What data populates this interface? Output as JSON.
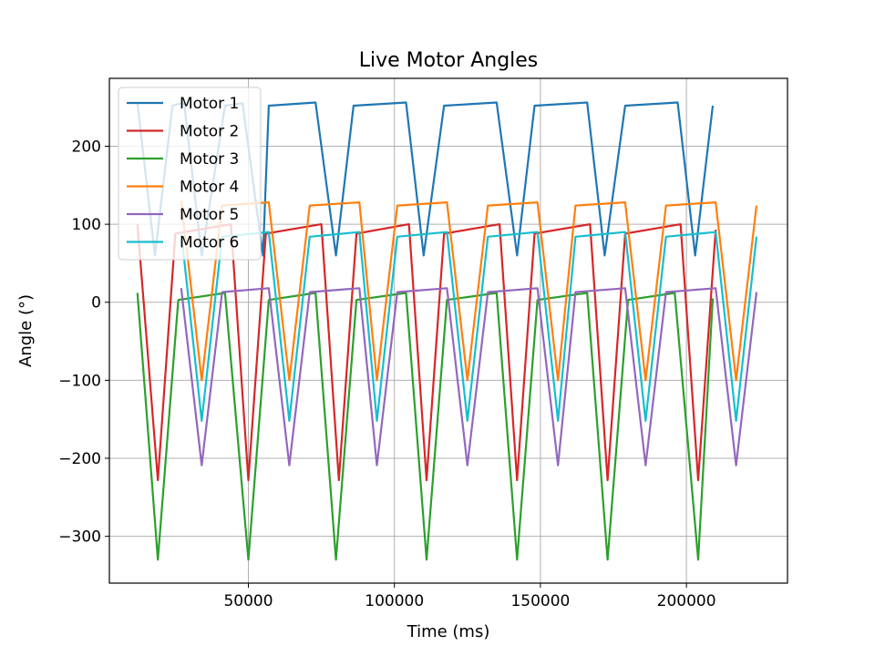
{
  "chart_data": {
    "type": "line",
    "title": "Live Motor Angles",
    "xlabel": "Time (ms)",
    "ylabel": "Angle (°)",
    "xlim": [
      2400,
      234600
    ],
    "ylim": [
      -360,
      287
    ],
    "xticks": [
      50000,
      100000,
      150000,
      200000
    ],
    "xtick_labels": [
      "50000",
      "100000",
      "150000",
      "200000"
    ],
    "yticks": [
      -300,
      -200,
      -100,
      0,
      100,
      200
    ],
    "ytick_labels": [
      "−300",
      "−200",
      "−100",
      "0",
      "100",
      "200"
    ],
    "grid": true,
    "legend_position": "upper-left",
    "series": [
      {
        "name": "Motor 1",
        "color": "#1f77b4",
        "x": [
          12000,
          18000,
          24000,
          27000,
          28000,
          34000,
          42000,
          48000,
          55000,
          57000,
          73000,
          80000,
          86000,
          104000,
          110000,
          117000,
          135000,
          142000,
          148000,
          166000,
          172000,
          179000,
          197000,
          203000,
          209000
        ],
        "y": [
          255,
          60,
          252,
          255,
          255,
          60,
          252,
          255,
          60,
          252,
          256,
          60,
          252,
          256,
          60,
          252,
          256,
          60,
          252,
          256,
          60,
          252,
          256,
          60,
          252
        ]
      },
      {
        "name": "Motor 2",
        "color": "#d62728",
        "x": [
          12000,
          19000,
          25000,
          44000,
          50000,
          56000,
          75000,
          81000,
          87000,
          105000,
          111000,
          117000,
          136000,
          142000,
          148000,
          167000,
          173000,
          179000,
          198000,
          204000,
          210000
        ],
        "y": [
          100,
          -228,
          88,
          100,
          -228,
          88,
          100,
          -228,
          88,
          100,
          -228,
          88,
          100,
          -228,
          88,
          100,
          -228,
          88,
          100,
          -228,
          93
        ]
      },
      {
        "name": "Motor 3",
        "color": "#2ca02c",
        "x": [
          12000,
          19000,
          26000,
          42000,
          50000,
          57000,
          73000,
          80000,
          87000,
          104000,
          111000,
          118000,
          135000,
          142000,
          149000,
          166000,
          173000,
          180000,
          196000,
          204000,
          209000
        ],
        "y": [
          12,
          -330,
          3,
          12,
          -330,
          3,
          12,
          -330,
          3,
          12,
          -330,
          3,
          12,
          -330,
          3,
          12,
          -330,
          3,
          12,
          -330,
          5
        ]
      },
      {
        "name": "Motor 4",
        "color": "#ff7f0e",
        "x": [
          27000,
          34000,
          41000,
          57000,
          64000,
          71000,
          88000,
          94000,
          101000,
          118000,
          125000,
          132000,
          149000,
          156000,
          162000,
          179000,
          186000,
          193000,
          210000,
          217000,
          224000
        ],
        "y": [
          130,
          -100,
          124,
          128,
          -100,
          124,
          128,
          -100,
          124,
          128,
          -100,
          124,
          128,
          -100,
          124,
          128,
          -100,
          124,
          128,
          -100,
          124
        ]
      },
      {
        "name": "Motor 5",
        "color": "#9467bd",
        "x": [
          27000,
          34000,
          41000,
          57000,
          64000,
          71000,
          88000,
          94000,
          101000,
          118000,
          125000,
          132000,
          149000,
          156000,
          162000,
          179000,
          186000,
          193000,
          210000,
          217000,
          224000
        ],
        "y": [
          18,
          -209,
          13,
          18,
          -209,
          13,
          18,
          -209,
          13,
          18,
          -209,
          13,
          18,
          -209,
          13,
          18,
          -209,
          13,
          18,
          -209,
          13
        ]
      },
      {
        "name": "Motor 6",
        "color": "#17becf",
        "x": [
          27000,
          34000,
          41000,
          57000,
          64000,
          71000,
          88000,
          94000,
          101000,
          118000,
          125000,
          132000,
          149000,
          156000,
          162000,
          179000,
          186000,
          193000,
          210000,
          217000,
          224000
        ],
        "y": [
          90,
          -152,
          84,
          90,
          -152,
          84,
          90,
          -152,
          84,
          90,
          -152,
          84,
          90,
          -152,
          84,
          90,
          -152,
          84,
          90,
          -152,
          84
        ]
      }
    ]
  }
}
